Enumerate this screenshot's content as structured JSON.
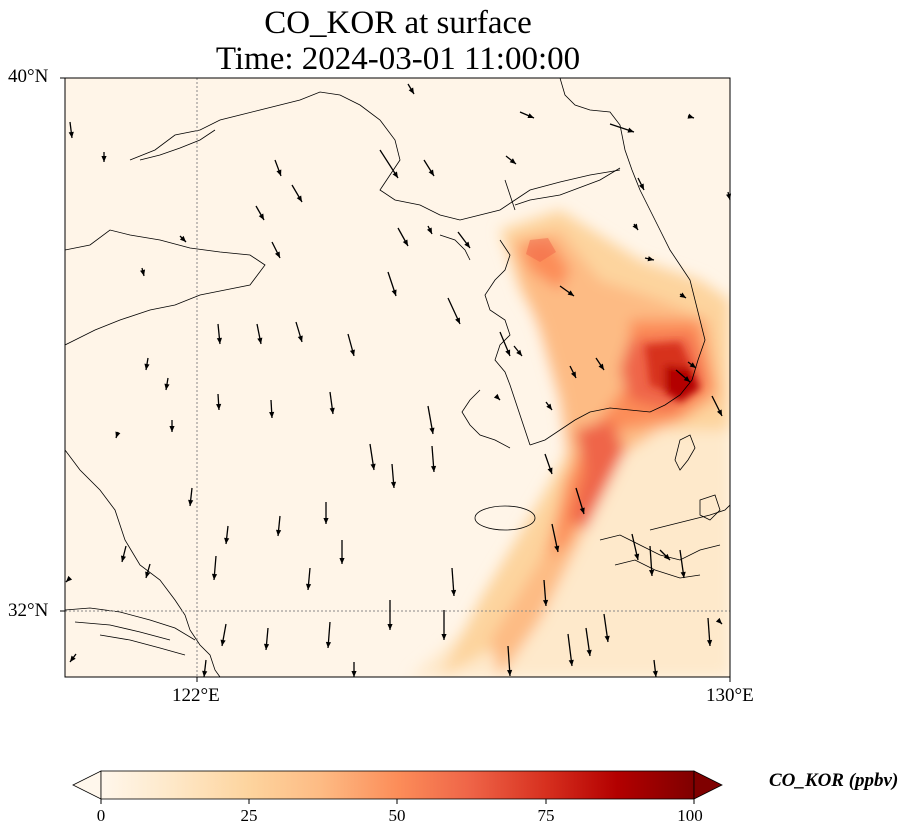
{
  "title": "CO_KOR at surface",
  "subtitle": "Time: 2024-03-01 11:00:00",
  "lat_ticks": [
    "40°N",
    "32°N"
  ],
  "lon_ticks": [
    "122°E",
    "130°E"
  ],
  "colorbar": {
    "label": "CO_KOR (ppbv)",
    "ticks": [
      "0",
      "25",
      "50",
      "75",
      "100"
    ],
    "range": [
      0,
      100
    ],
    "colormap": "OrRd",
    "colors": [
      "#fff7ec",
      "#fee8c8",
      "#fdd49e",
      "#fdbb84",
      "#fc8d59",
      "#ef6548",
      "#d7301f",
      "#b30000",
      "#7f0000"
    ]
  },
  "map": {
    "lon_range": [
      120,
      130
    ],
    "lat_range": [
      31,
      40
    ],
    "gridlines": {
      "lon": [
        122
      ],
      "lat": [
        32
      ],
      "style": "dotted"
    },
    "field": "CO_KOR concentration",
    "wind_vectors": "shown as black arrows"
  }
}
